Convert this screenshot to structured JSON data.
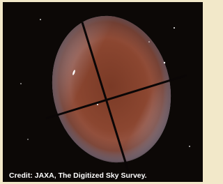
{
  "caption": "Credit: JAXA, The Digitized Sky Survey."
}
